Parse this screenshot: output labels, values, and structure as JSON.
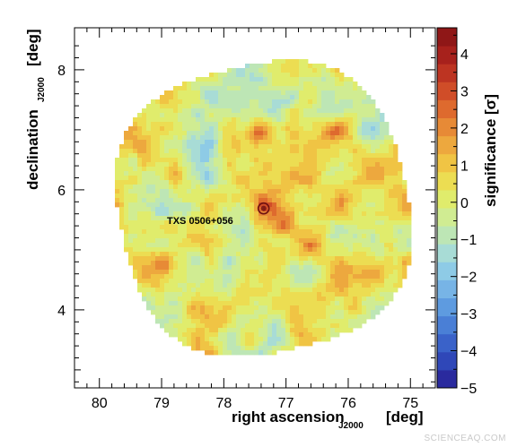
{
  "chart_data": {
    "type": "heatmap",
    "title": "",
    "xlabel": {
      "main": "right ascension",
      "subscript": "J2000",
      "unit": "[deg]"
    },
    "ylabel": {
      "main": "declination",
      "subscript": "J2000",
      "unit": "[deg]"
    },
    "xlim": [
      80.4,
      74.6
    ],
    "ylim": [
      2.7,
      8.7
    ],
    "x_reversed": true,
    "x_ticks": [
      80,
      79,
      78,
      77,
      76,
      75
    ],
    "x_tick_labels": [
      "80",
      "79",
      "78",
      "77",
      "76",
      "75"
    ],
    "y_ticks": [
      4,
      6,
      8
    ],
    "y_tick_labels": [
      "4",
      "6",
      "8"
    ],
    "colorbar": {
      "label": "significance [σ]",
      "range": [
        -5,
        4.7
      ],
      "ticks": [
        -5,
        -4,
        -3,
        -2,
        -1,
        0,
        1,
        2,
        3,
        4
      ],
      "tick_labels": [
        "−5",
        "−4",
        "−3",
        "−2",
        "−1",
        "0",
        "1",
        "2",
        "3",
        "4"
      ],
      "colors": [
        "#2a2a9e",
        "#2f47b8",
        "#3a62c9",
        "#4a7fd6",
        "#5e9be0",
        "#77b4e6",
        "#8ecbe6",
        "#a8dcd6",
        "#bde6b5",
        "#d0ec92",
        "#e0ec6c",
        "#ecdd52",
        "#f0c444",
        "#eda83e",
        "#e78a36",
        "#de6a2e",
        "#d04d28",
        "#bd3422",
        "#a7211c",
        "#8f1717"
      ]
    },
    "sky_region": {
      "center_ra": 77.36,
      "center_dec": 5.69,
      "radius_deg": 2.5
    },
    "hotspots": [
      {
        "ra": 77.36,
        "dec": 5.69,
        "significance": 3.5
      },
      {
        "ra": 77.05,
        "dec": 5.42,
        "significance": 3.0
      },
      {
        "ra": 76.6,
        "dec": 5.05,
        "significance": 3.0
      },
      {
        "ra": 77.4,
        "dec": 6.95,
        "significance": 3.0
      },
      {
        "ra": 78.3,
        "dec": 8.0,
        "significance": 2.8
      },
      {
        "ra": 76.2,
        "dec": 7.0,
        "significance": 2.6
      },
      {
        "ra": 79.0,
        "dec": 4.7,
        "significance": 2.5
      },
      {
        "ra": 76.0,
        "dec": 4.1,
        "significance": 2.5
      },
      {
        "ra": 77.6,
        "dec": 3.5,
        "significance": 2.4
      },
      {
        "ra": 78.8,
        "dec": 5.4,
        "significance": 2.2
      }
    ],
    "source": {
      "name": "TXS 0506+056",
      "ra": 77.36,
      "dec": 5.69
    }
  },
  "watermark": "SCIENCEAQ.COM",
  "colors": {
    "axis": "#000000",
    "marker": "#6e1010"
  }
}
